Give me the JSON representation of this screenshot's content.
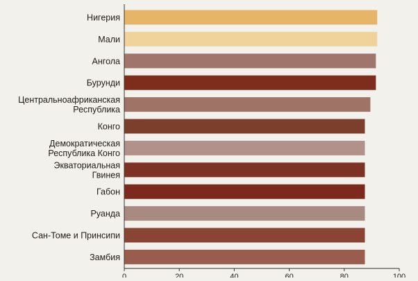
{
  "chart_data": {
    "type": "bar",
    "orientation": "horizontal",
    "categories": [
      [
        "Нигерия"
      ],
      [
        "Мали"
      ],
      [
        "Ангола"
      ],
      [
        "Бурунди"
      ],
      [
        "Центральноафриканская",
        "Республика"
      ],
      [
        "Конго"
      ],
      [
        "Демократическая",
        "Республика Конго"
      ],
      [
        "Экваториальная",
        "Гвинея"
      ],
      [
        "Габон"
      ],
      [
        "Руанда"
      ],
      [
        "Сан-Томе и Принсипи"
      ],
      [
        "Замбия"
      ]
    ],
    "values": [
      92,
      92,
      91.5,
      91.5,
      89.5,
      87.5,
      87.5,
      87.5,
      87.5,
      87.5,
      87.5,
      87.5
    ],
    "colors": [
      "#e6b567",
      "#efd39a",
      "#a0756b",
      "#7e2d1c",
      "#9e7466",
      "#7b3f2c",
      "#b0928a",
      "#7c3324",
      "#7b2a1d",
      "#a88a80",
      "#8a4433",
      "#9a5d4d"
    ],
    "xlim": [
      0,
      100
    ],
    "xticks": [
      0,
      20,
      40,
      60,
      80,
      100
    ],
    "grid": false,
    "legend": "none"
  }
}
